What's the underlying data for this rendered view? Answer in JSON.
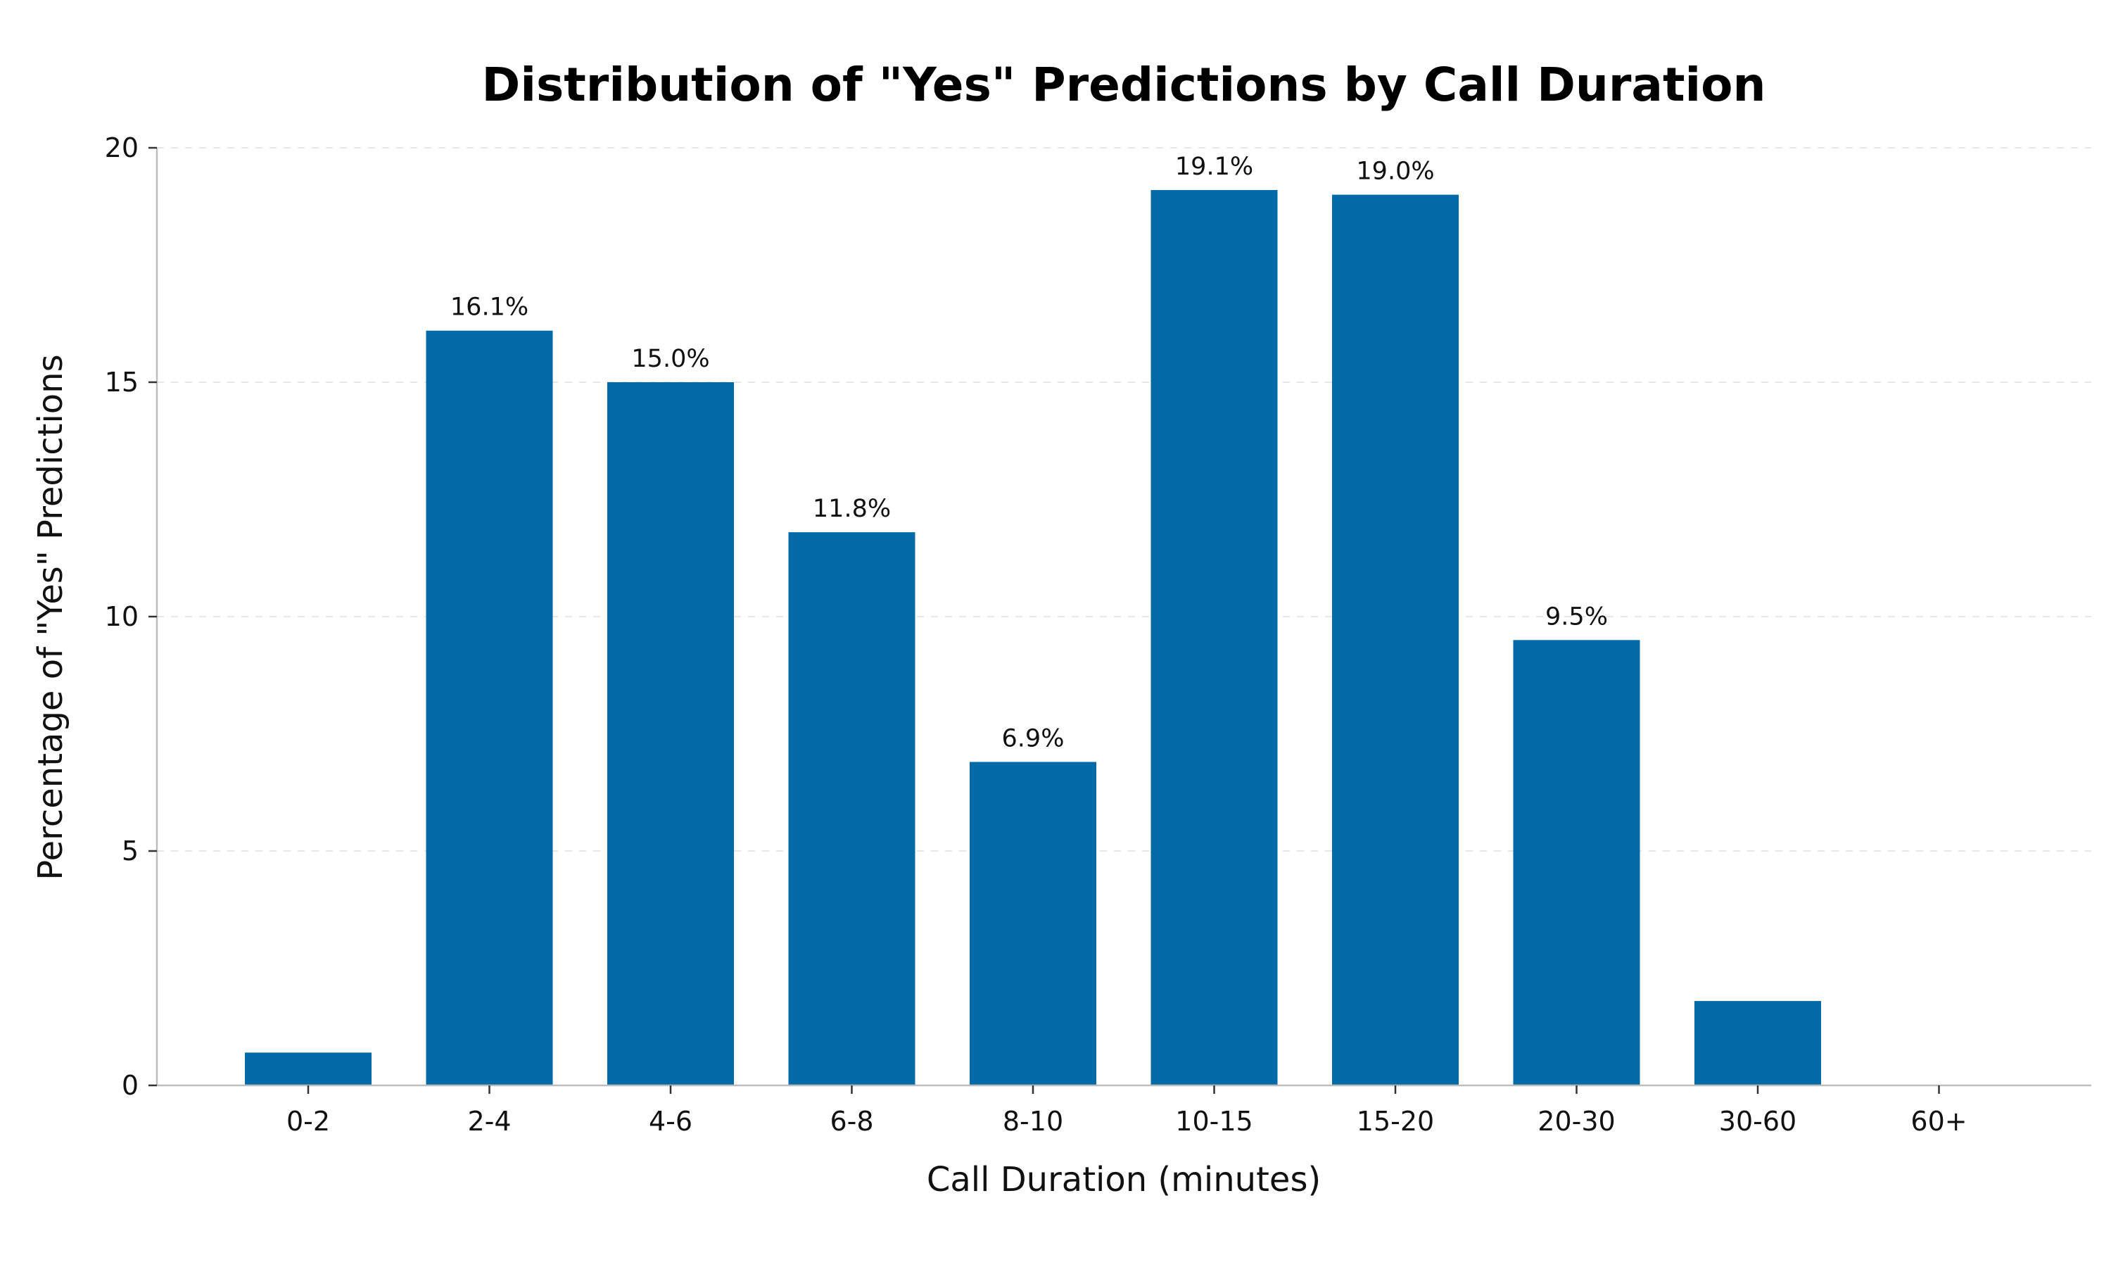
{
  "chart_data": {
    "type": "bar",
    "title": "Distribution of \"Yes\" Predictions by Call Duration",
    "xlabel": "Call Duration (minutes)",
    "ylabel": "Percentage of \"Yes\" Predictions",
    "categories": [
      "0-2",
      "2-4",
      "4-6",
      "6-8",
      "8-10",
      "10-15",
      "15-20",
      "20-30",
      "30-60",
      "60+"
    ],
    "values": [
      0.7,
      16.1,
      15.0,
      11.8,
      6.9,
      19.1,
      19.0,
      9.5,
      1.8,
      0.0
    ],
    "data_labels": [
      "",
      "16.1%",
      "15.0%",
      "11.8%",
      "6.9%",
      "19.1%",
      "19.0%",
      "9.5%",
      "",
      ""
    ],
    "ylim": [
      0,
      20
    ],
    "yticks": [
      0,
      5,
      10,
      15,
      20
    ],
    "grid": "horizontal-dashed",
    "bar_color": "#026BA7",
    "legend": "none"
  }
}
